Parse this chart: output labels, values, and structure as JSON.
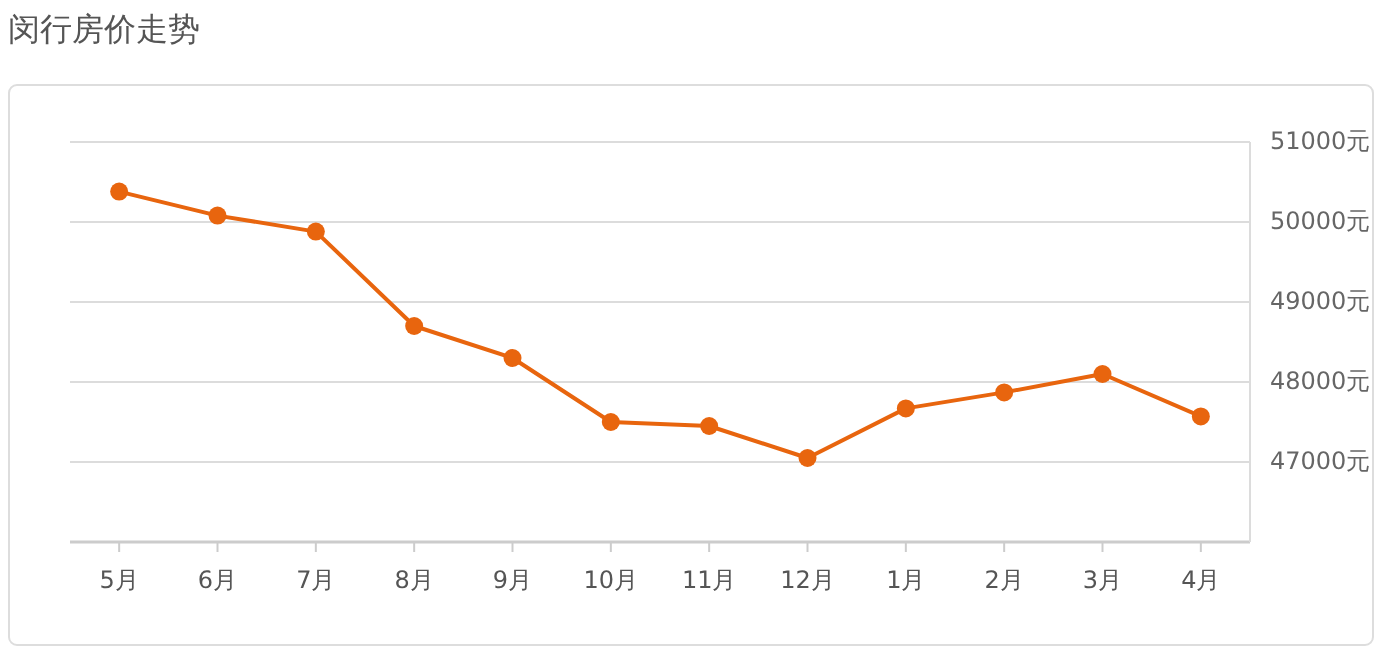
{
  "chart_data": {
    "type": "line",
    "title": "闵行房价走势",
    "categories": [
      "5月",
      "6月",
      "7月",
      "8月",
      "9月",
      "10月",
      "11月",
      "12月",
      "1月",
      "2月",
      "3月",
      "4月"
    ],
    "series": [
      {
        "color": "#e8650e",
        "values": [
          50380,
          50080,
          49880,
          48700,
          48300,
          47500,
          47450,
          47050,
          47670,
          47870,
          48100,
          47570
        ]
      }
    ],
    "ylim": [
      46000,
      51000
    ],
    "yticks": [
      {
        "value": 47000,
        "label": "47000元"
      },
      {
        "value": 48000,
        "label": "48000元"
      },
      {
        "value": 49000,
        "label": "49000元"
      },
      {
        "value": 50000,
        "label": "50000元"
      },
      {
        "value": 51000,
        "label": "51000元"
      }
    ],
    "grid": "y",
    "marker": "circle",
    "line_style": "solid"
  }
}
